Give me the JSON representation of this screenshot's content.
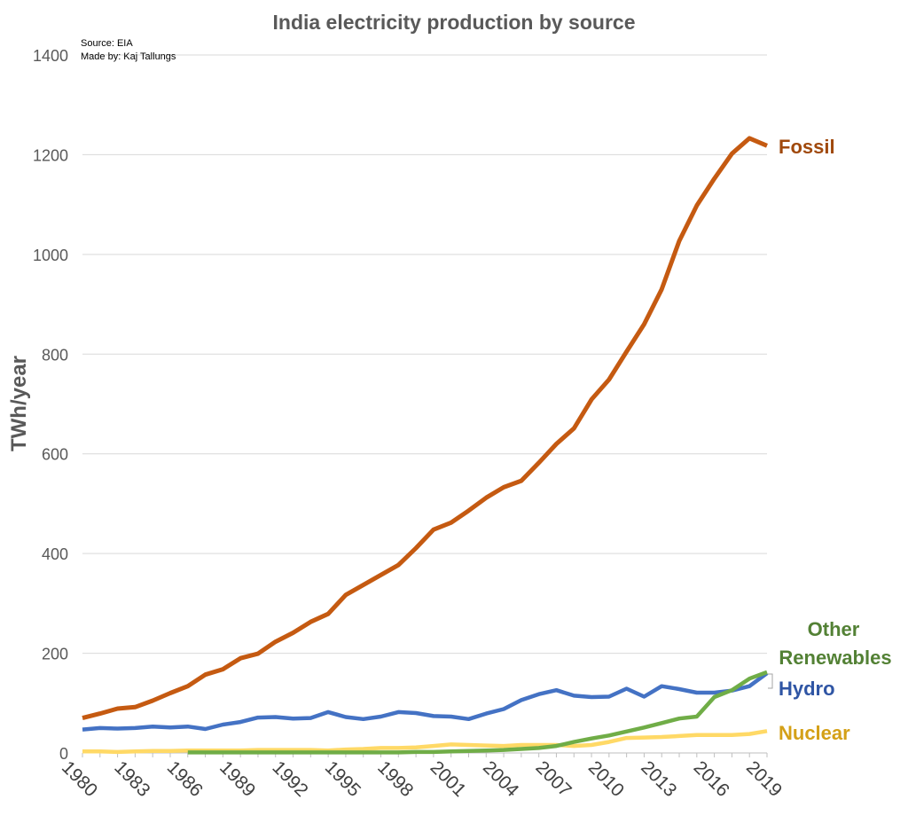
{
  "chart_data": {
    "type": "line",
    "title": "India electricity production by source",
    "source_note": "Source: EIA",
    "author_note": "Made by: Kaj Tallungs",
    "ylabel": "TWh/year",
    "xlabel": "",
    "ylim": [
      0,
      1400
    ],
    "y_ticks": [
      0,
      200,
      400,
      600,
      800,
      1000,
      1200,
      1400
    ],
    "x_tick_labels": [
      "1980",
      "1983",
      "1986",
      "1989",
      "1992",
      "1995",
      "1998",
      "2001",
      "2004",
      "2007",
      "2010",
      "2013",
      "2016",
      "2019"
    ],
    "grid": "horizontal",
    "legend": "direct labels at right end of lines",
    "x": [
      1980,
      1981,
      1982,
      1983,
      1984,
      1985,
      1986,
      1987,
      1988,
      1989,
      1990,
      1991,
      1992,
      1993,
      1994,
      1995,
      1996,
      1997,
      1998,
      1999,
      2000,
      2001,
      2002,
      2003,
      2004,
      2005,
      2006,
      2007,
      2008,
      2009,
      2010,
      2011,
      2012,
      2013,
      2014,
      2015,
      2016,
      2017,
      2018,
      2019
    ],
    "series": [
      {
        "name": "Fossil",
        "color": "#C55A11",
        "label_color": "#A0490C",
        "values": [
          70,
          79,
          89,
          92,
          105,
          120,
          134,
          157,
          168,
          190,
          199,
          223,
          241,
          263,
          279,
          317,
          337,
          357,
          377,
          411,
          448,
          462,
          486,
          512,
          533,
          546,
          582,
          620,
          651,
          709,
          749,
          805,
          860,
          930,
          1027,
          1098,
          1152,
          1202,
          1233,
          1218
        ]
      },
      {
        "name": "Hydro",
        "color": "#4472C4",
        "label_color": "#2F55A4",
        "values": [
          47,
          50,
          49,
          50,
          53,
          51,
          53,
          48,
          57,
          62,
          71,
          72,
          69,
          70,
          82,
          72,
          68,
          73,
          82,
          80,
          74,
          73,
          68,
          79,
          88,
          106,
          118,
          126,
          115,
          112,
          113,
          129,
          113,
          134,
          128,
          121,
          121,
          125,
          134,
          160
        ]
      },
      {
        "name": "Nuclear",
        "color": "#FFD966",
        "label_color": "#D4A017",
        "values": [
          3,
          3,
          2,
          3,
          4,
          4,
          5,
          5,
          5,
          5,
          6,
          6,
          6,
          6,
          5,
          7,
          8,
          10,
          10,
          11,
          14,
          17,
          16,
          15,
          14,
          16,
          16,
          16,
          14,
          16,
          22,
          30,
          31,
          32,
          34,
          36,
          36,
          36,
          38,
          44
        ]
      },
      {
        "name": "Other Renewables",
        "label_lines": [
          "Other",
          "Renewables"
        ],
        "color": "#70AD47",
        "label_color": "#538135",
        "start_year": 1986,
        "values": [
          null,
          null,
          null,
          null,
          null,
          null,
          1,
          1,
          1,
          1,
          1,
          1,
          1,
          1,
          1,
          1,
          1,
          1,
          1,
          2,
          2,
          3,
          4,
          5,
          6,
          8,
          10,
          14,
          22,
          29,
          35,
          43,
          51,
          60,
          69,
          73,
          112,
          126,
          149,
          162
        ]
      }
    ]
  }
}
